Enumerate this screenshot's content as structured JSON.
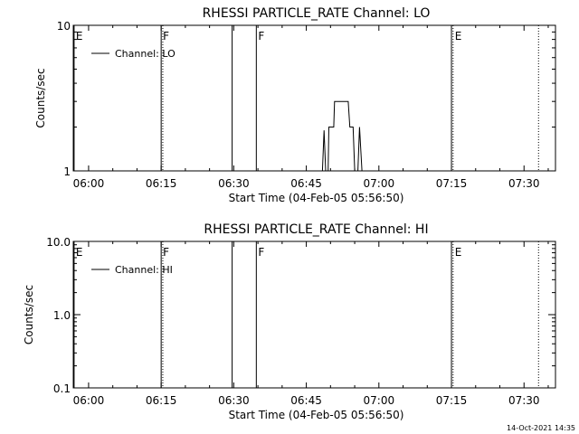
{
  "chart_data": [
    {
      "type": "line",
      "title": "RHESSI PARTICLE_RATE Channel: LO",
      "xlabel": "Start Time (04-Feb-05 05:56:50)",
      "ylabel": "Counts/sec",
      "yscale": "log",
      "xlim": [
        "05:56:50",
        "07:36:30"
      ],
      "ylim": [
        1,
        10
      ],
      "x_ticks": [
        "06:00",
        "06:15",
        "06:30",
        "06:45",
        "07:00",
        "07:15",
        "07:30"
      ],
      "y_ticks": [
        {
          "value": 1,
          "label": "1"
        },
        {
          "value": 10,
          "label": "10"
        }
      ],
      "grid": false,
      "legend": {
        "position": "top-left",
        "entries": [
          "Channel: LO"
        ]
      },
      "series": [
        {
          "name": "Channel: LO",
          "points": [
            [
              "06:48:20",
              1
            ],
            [
              "06:48:40",
              1.9
            ],
            [
              "06:49:00",
              1
            ],
            [
              "06:49:30",
              1
            ],
            [
              "06:49:40",
              2.0
            ],
            [
              "06:50:40",
              2.0
            ],
            [
              "06:50:50",
              3.0
            ],
            [
              "06:53:40",
              3.0
            ],
            [
              "06:54:00",
              2.0
            ],
            [
              "06:54:40",
              2.0
            ],
            [
              "06:55:00",
              1
            ],
            [
              "06:55:40",
              1
            ],
            [
              "06:56:00",
              2.0
            ],
            [
              "06:56:30",
              1
            ]
          ]
        }
      ],
      "flag_markers": [
        {
          "time": "05:57:00",
          "label": "E",
          "style": "solid"
        },
        {
          "time": "06:15:00",
          "label": "F",
          "style": "solid"
        },
        {
          "time": "06:15:20",
          "label": "",
          "style": "dotted"
        },
        {
          "time": "06:29:40",
          "label": "",
          "style": "solid"
        },
        {
          "time": "06:34:40",
          "label": "F",
          "style": "solid"
        },
        {
          "time": "07:15:00",
          "label": "",
          "style": "solid"
        },
        {
          "time": "07:15:20",
          "label": "E",
          "style": "dotted"
        },
        {
          "time": "07:33:00",
          "label": "",
          "style": "dotted"
        }
      ]
    },
    {
      "type": "line",
      "title": "RHESSI PARTICLE_RATE Channel: HI",
      "xlabel": "Start Time (04-Feb-05 05:56:50)",
      "ylabel": "Counts/sec",
      "yscale": "log",
      "xlim": [
        "05:56:50",
        "07:36:30"
      ],
      "ylim": [
        0.1,
        10
      ],
      "x_ticks": [
        "06:00",
        "06:15",
        "06:30",
        "06:45",
        "07:00",
        "07:15",
        "07:30"
      ],
      "y_ticks": [
        {
          "value": 0.1,
          "label": "0.1"
        },
        {
          "value": 1,
          "label": "1.0"
        },
        {
          "value": 10,
          "label": "10.0"
        }
      ],
      "grid": false,
      "legend": {
        "position": "top-left",
        "entries": [
          "Channel: HI"
        ]
      },
      "series": [
        {
          "name": "Channel: HI",
          "points": []
        }
      ],
      "flag_markers": [
        {
          "time": "05:57:00",
          "label": "E",
          "style": "solid"
        },
        {
          "time": "06:15:00",
          "label": "F",
          "style": "solid"
        },
        {
          "time": "06:15:20",
          "label": "",
          "style": "dotted"
        },
        {
          "time": "06:29:40",
          "label": "",
          "style": "solid"
        },
        {
          "time": "06:34:40",
          "label": "F",
          "style": "solid"
        },
        {
          "time": "07:15:00",
          "label": "",
          "style": "solid"
        },
        {
          "time": "07:15:20",
          "label": "E",
          "style": "dotted"
        },
        {
          "time": "07:33:00",
          "label": "",
          "style": "dotted"
        }
      ]
    }
  ],
  "footer": {
    "timestamp": "14-Oct-2021 14:35"
  }
}
